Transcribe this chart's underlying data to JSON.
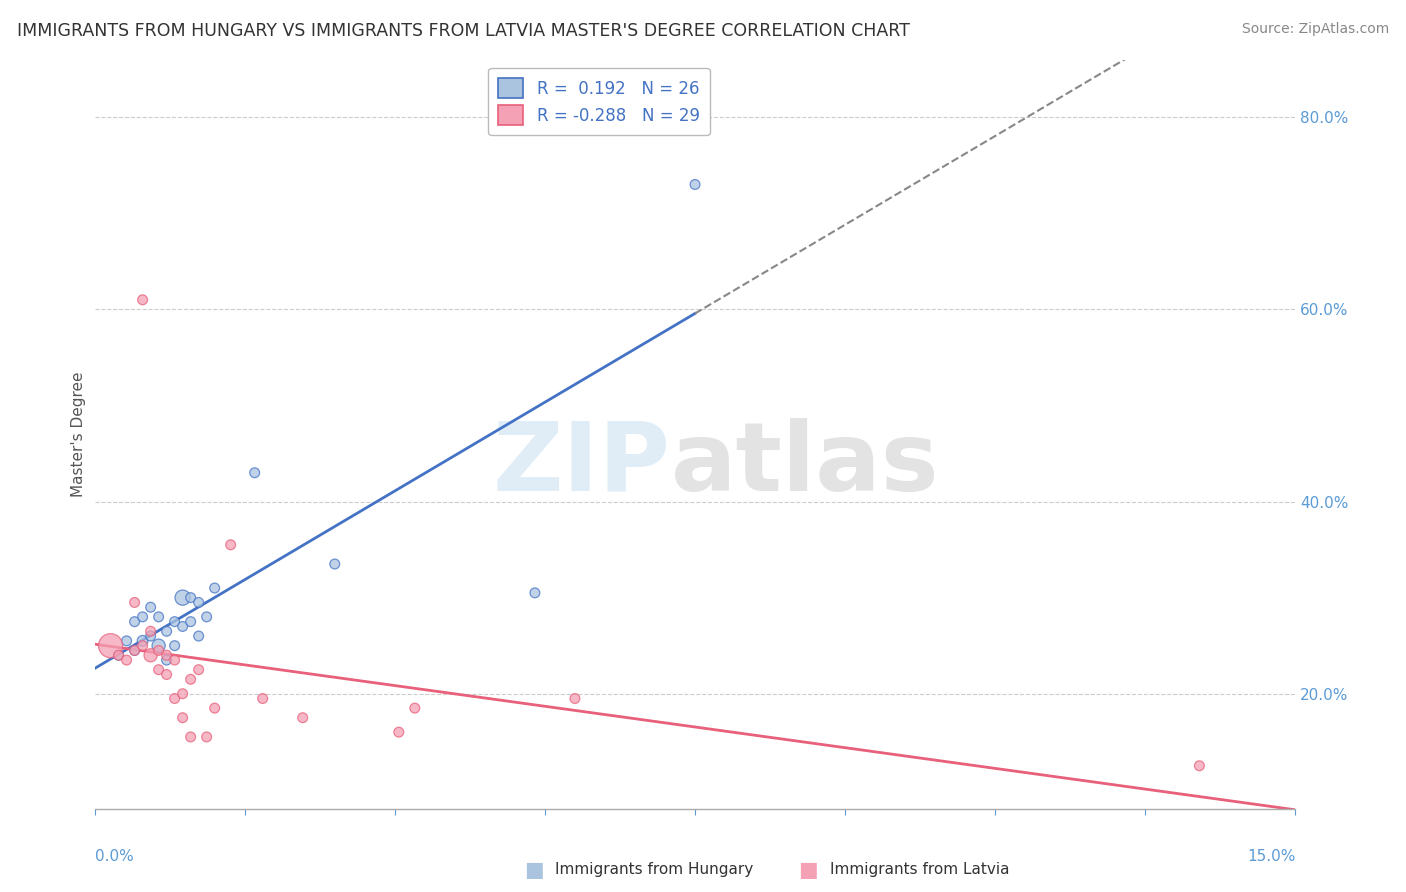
{
  "title": "IMMIGRANTS FROM HUNGARY VS IMMIGRANTS FROM LATVIA MASTER'S DEGREE CORRELATION CHART",
  "source": "Source: ZipAtlas.com",
  "ylabel": "Master's Degree",
  "xlim": [
    0.0,
    0.15
  ],
  "ylim": [
    0.08,
    0.86
  ],
  "yticks": [
    0.2,
    0.4,
    0.6,
    0.8
  ],
  "legend_hungary_r": "R =  0.192",
  "legend_hungary_n": "N = 26",
  "legend_latvia_r": "R = -0.288",
  "legend_latvia_n": "N = 29",
  "hungary_color": "#aac4e0",
  "latvia_color": "#f4a0b5",
  "hungary_line_color": "#4472c4",
  "latvia_line_color": "#e8607a",
  "hungary_scatter_x": [
    0.003,
    0.004,
    0.005,
    0.005,
    0.006,
    0.006,
    0.007,
    0.007,
    0.008,
    0.008,
    0.009,
    0.009,
    0.01,
    0.01,
    0.011,
    0.011,
    0.012,
    0.012,
    0.013,
    0.013,
    0.014,
    0.015,
    0.02,
    0.03,
    0.055,
    0.075
  ],
  "hungary_scatter_y": [
    0.24,
    0.255,
    0.245,
    0.275,
    0.255,
    0.28,
    0.26,
    0.29,
    0.25,
    0.28,
    0.235,
    0.265,
    0.25,
    0.275,
    0.27,
    0.3,
    0.275,
    0.3,
    0.26,
    0.295,
    0.28,
    0.31,
    0.43,
    0.335,
    0.305,
    0.73
  ],
  "hungary_scatter_size": [
    50,
    50,
    50,
    50,
    60,
    50,
    50,
    50,
    90,
    50,
    50,
    50,
    50,
    50,
    50,
    120,
    50,
    50,
    50,
    50,
    50,
    50,
    50,
    50,
    50,
    50
  ],
  "latvia_scatter_x": [
    0.002,
    0.003,
    0.004,
    0.005,
    0.005,
    0.006,
    0.006,
    0.007,
    0.007,
    0.008,
    0.008,
    0.009,
    0.009,
    0.01,
    0.01,
    0.011,
    0.011,
    0.012,
    0.012,
    0.013,
    0.014,
    0.015,
    0.017,
    0.021,
    0.026,
    0.038,
    0.04,
    0.06,
    0.138
  ],
  "latvia_scatter_y": [
    0.25,
    0.24,
    0.235,
    0.245,
    0.295,
    0.25,
    0.61,
    0.24,
    0.265,
    0.225,
    0.245,
    0.24,
    0.22,
    0.235,
    0.195,
    0.2,
    0.175,
    0.215,
    0.155,
    0.225,
    0.155,
    0.185,
    0.355,
    0.195,
    0.175,
    0.16,
    0.185,
    0.195,
    0.125
  ],
  "latvia_scatter_size": [
    300,
    50,
    50,
    50,
    50,
    50,
    50,
    90,
    50,
    50,
    50,
    50,
    50,
    50,
    50,
    50,
    50,
    50,
    50,
    50,
    50,
    50,
    50,
    50,
    50,
    50,
    50,
    50,
    50
  ],
  "background_color": "#ffffff",
  "grid_color": "#cccccc"
}
